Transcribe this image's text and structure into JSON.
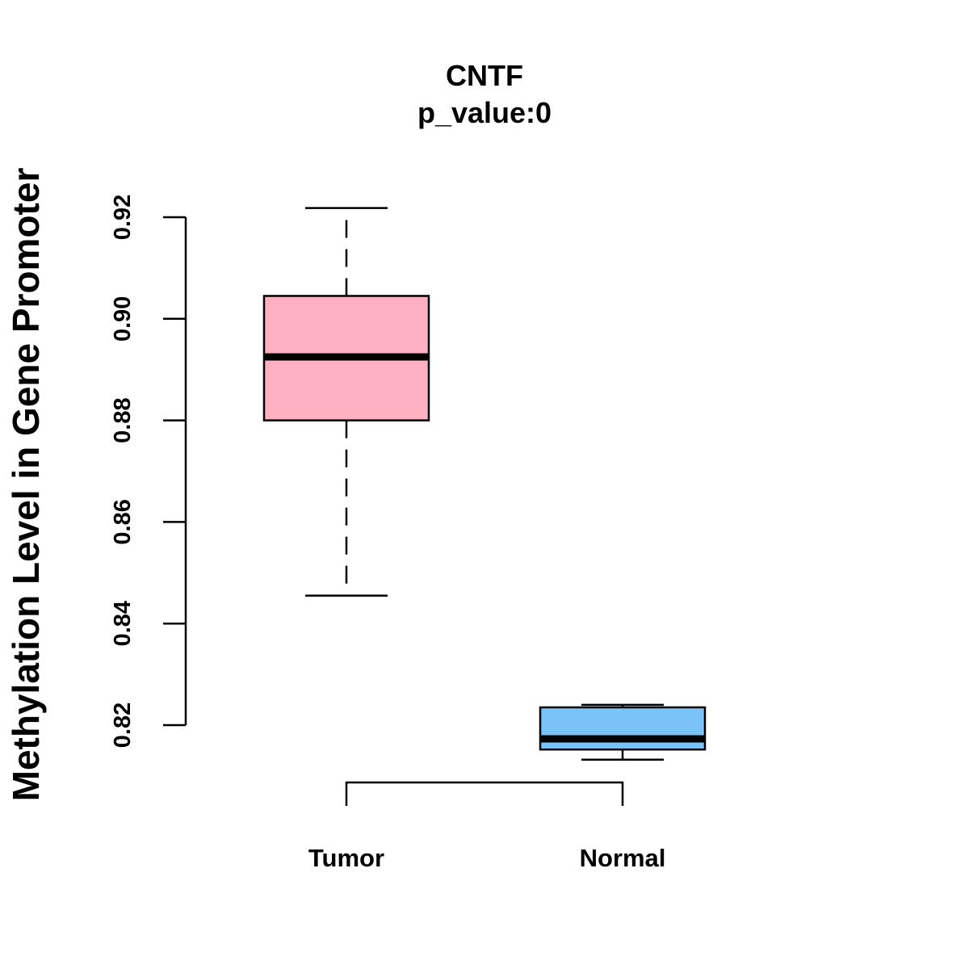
{
  "chart_data": {
    "type": "boxplot",
    "title": "CNTF",
    "subtitle": "p_value:0",
    "xlabel": "",
    "ylabel": "Methylation Level in Gene Promoter",
    "ylim": [
      0.82,
      0.92
    ],
    "yticks": [
      0.82,
      0.84,
      0.86,
      0.88,
      0.9,
      0.92
    ],
    "ytick_labels": [
      "0.82",
      "0.84",
      "0.86",
      "0.88",
      "0.90",
      "0.92"
    ],
    "categories": [
      "Tumor",
      "Normal"
    ],
    "groups": [
      {
        "name": "Tumor",
        "whisker_low": 0.8455,
        "q1": 0.88,
        "median": 0.8925,
        "q3": 0.9045,
        "whisker_high": 0.9218,
        "color": "#FFB0C3"
      },
      {
        "name": "Normal",
        "whisker_low": 0.8132,
        "q1": 0.8152,
        "median": 0.8173,
        "q3": 0.8235,
        "whisker_high": 0.824,
        "color": "#7BC2F8"
      }
    ],
    "group_comparison": [
      "Tumor",
      "Normal"
    ]
  }
}
